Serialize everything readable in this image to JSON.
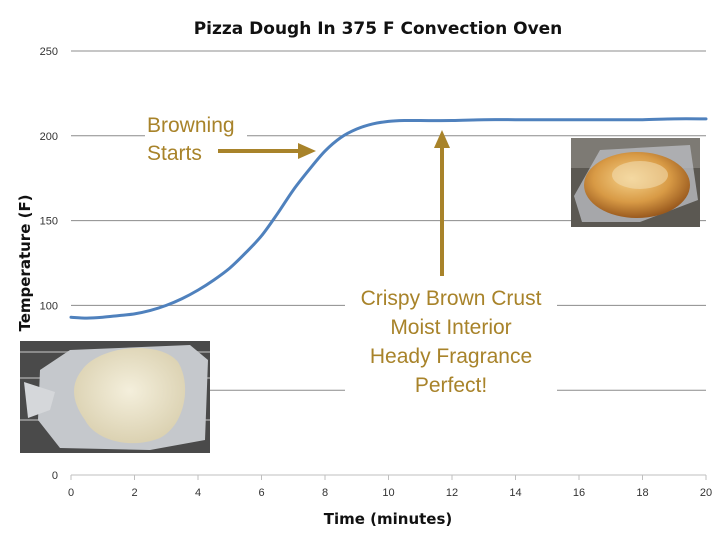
{
  "chart_data": {
    "type": "line",
    "title": "Pizza Dough In 375 F Convection Oven",
    "xlabel": "Time (minutes)",
    "ylabel": "Temperature (F)",
    "xlim": [
      0,
      20
    ],
    "ylim": [
      0,
      250
    ],
    "x_ticks": [
      0,
      2,
      4,
      6,
      8,
      10,
      12,
      14,
      16,
      18,
      20
    ],
    "y_ticks": [
      0,
      50,
      100,
      150,
      200,
      250
    ],
    "grid": "horizontal",
    "legend": "none",
    "series": [
      {
        "color": "#4f81bd",
        "x": [
          0,
          0.5,
          1,
          1.5,
          2,
          2.5,
          3,
          3.5,
          4,
          4.5,
          5,
          5.5,
          6,
          6.5,
          7,
          7.5,
          8,
          8.5,
          9,
          9.5,
          10,
          10.5,
          11,
          12,
          13,
          14,
          15,
          16,
          17,
          18,
          19,
          20
        ],
        "y": [
          93,
          92.5,
          93,
          94,
          95,
          97,
          100,
          104,
          109,
          115,
          122,
          131,
          141,
          154,
          168,
          180,
          191,
          199,
          204,
          207,
          208.5,
          209,
          209,
          209,
          209.5,
          209.5,
          209.5,
          209.5,
          209.5,
          209.5,
          210,
          210
        ]
      }
    ],
    "annotations": [
      {
        "lines": [
          "Browning",
          "Starts"
        ],
        "color": "#a8832a"
      },
      {
        "lines": [
          "Crispy Brown Crust",
          "Moist Interior",
          "Heady Fragrance",
          "Perfect!"
        ],
        "color": "#a8832a"
      }
    ],
    "images": [
      {
        "name": "baked-pizza-dough-photo"
      },
      {
        "name": "raw-pizza-dough-photo"
      }
    ]
  }
}
